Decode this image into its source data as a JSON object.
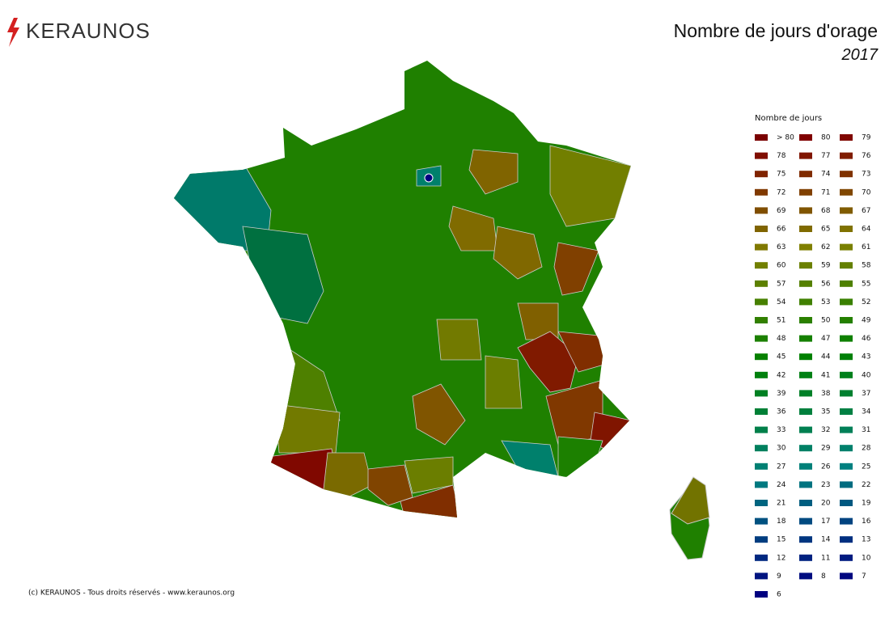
{
  "header": {
    "logo": "KERAUNOS",
    "title": "Nombre de jours d'orage",
    "subtitle": "2017"
  },
  "legend": {
    "title": "Nombre de jours",
    "items": [
      {
        "label": "> 80",
        "color": "#7a0000"
      },
      {
        "label": "80",
        "color": "#800000"
      },
      {
        "label": "79",
        "color": "#800700"
      },
      {
        "label": "78",
        "color": "#800e00"
      },
      {
        "label": "77",
        "color": "#801500"
      },
      {
        "label": "76",
        "color": "#801c00"
      },
      {
        "label": "75",
        "color": "#802400"
      },
      {
        "label": "74",
        "color": "#802b00"
      },
      {
        "label": "73",
        "color": "#803200"
      },
      {
        "label": "72",
        "color": "#803900"
      },
      {
        "label": "71",
        "color": "#804000"
      },
      {
        "label": "70",
        "color": "#804700"
      },
      {
        "label": "69",
        "color": "#804e00"
      },
      {
        "label": "68",
        "color": "#805500"
      },
      {
        "label": "67",
        "color": "#805c00"
      },
      {
        "label": "66",
        "color": "#806400"
      },
      {
        "label": "65",
        "color": "#806b00"
      },
      {
        "label": "64",
        "color": "#807200"
      },
      {
        "label": "63",
        "color": "#807900"
      },
      {
        "label": "62",
        "color": "#808000"
      },
      {
        "label": "61",
        "color": "#798000"
      },
      {
        "label": "60",
        "color": "#728000"
      },
      {
        "label": "59",
        "color": "#6b8000"
      },
      {
        "label": "58",
        "color": "#648000"
      },
      {
        "label": "57",
        "color": "#5c8000"
      },
      {
        "label": "56",
        "color": "#558000"
      },
      {
        "label": "55",
        "color": "#4e8000"
      },
      {
        "label": "54",
        "color": "#478000"
      },
      {
        "label": "53",
        "color": "#408000"
      },
      {
        "label": "52",
        "color": "#398000"
      },
      {
        "label": "51",
        "color": "#328000"
      },
      {
        "label": "50",
        "color": "#2b8000"
      },
      {
        "label": "49",
        "color": "#248000"
      },
      {
        "label": "48",
        "color": "#1c8000"
      },
      {
        "label": "47",
        "color": "#158000"
      },
      {
        "label": "46",
        "color": "#0e8000"
      },
      {
        "label": "45",
        "color": "#078000"
      },
      {
        "label": "44",
        "color": "#008000"
      },
      {
        "label": "43",
        "color": "#008007"
      },
      {
        "label": "42",
        "color": "#00800d"
      },
      {
        "label": "41",
        "color": "#008014"
      },
      {
        "label": "40",
        "color": "#00801b"
      },
      {
        "label": "39",
        "color": "#008022"
      },
      {
        "label": "38",
        "color": "#008028"
      },
      {
        "label": "37",
        "color": "#00802f"
      },
      {
        "label": "36",
        "color": "#008036"
      },
      {
        "label": "35",
        "color": "#00803d"
      },
      {
        "label": "34",
        "color": "#008043"
      },
      {
        "label": "33",
        "color": "#00804a"
      },
      {
        "label": "32",
        "color": "#008051"
      },
      {
        "label": "31",
        "color": "#008058"
      },
      {
        "label": "30",
        "color": "#00805e"
      },
      {
        "label": "29",
        "color": "#008065"
      },
      {
        "label": "28",
        "color": "#00806c"
      },
      {
        "label": "27",
        "color": "#008073"
      },
      {
        "label": "26",
        "color": "#008079"
      },
      {
        "label": "25",
        "color": "#008080"
      },
      {
        "label": "24",
        "color": "#007980"
      },
      {
        "label": "23",
        "color": "#007380"
      },
      {
        "label": "22",
        "color": "#006c80"
      },
      {
        "label": "21",
        "color": "#006580"
      },
      {
        "label": "20",
        "color": "#005e80"
      },
      {
        "label": "19",
        "color": "#005880"
      },
      {
        "label": "18",
        "color": "#005180"
      },
      {
        "label": "17",
        "color": "#004a80"
      },
      {
        "label": "16",
        "color": "#004380"
      },
      {
        "label": "15",
        "color": "#003d80"
      },
      {
        "label": "14",
        "color": "#003680"
      },
      {
        "label": "13",
        "color": "#002f80"
      },
      {
        "label": "12",
        "color": "#002880"
      },
      {
        "label": "11",
        "color": "#002280"
      },
      {
        "label": "10",
        "color": "#001b80"
      },
      {
        "label": "9",
        "color": "#001480"
      },
      {
        "label": "8",
        "color": "#000d80"
      },
      {
        "label": "7",
        "color": "#000780"
      },
      {
        "label": "6",
        "color": "#000080"
      }
    ]
  },
  "footer": {
    "copyright": "(c) KERAUNOS - Tous droits réservés - www.keraunos.org"
  }
}
